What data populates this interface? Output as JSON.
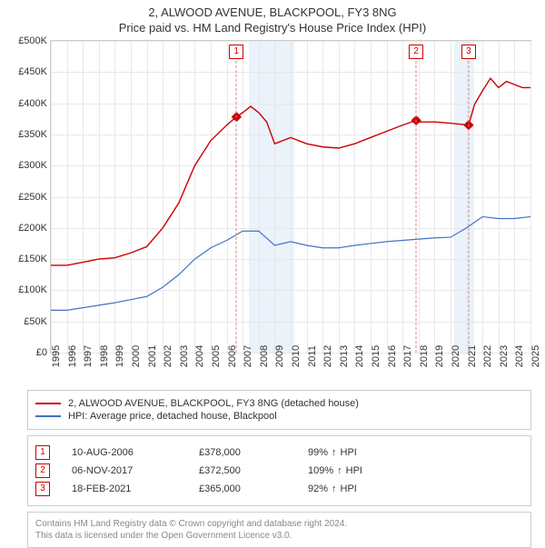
{
  "title": "2, ALWOOD AVENUE, BLACKPOOL, FY3 8NG",
  "subtitle": "Price paid vs. HM Land Registry's House Price Index (HPI)",
  "chart": {
    "type": "line",
    "background_color": "#ffffff",
    "grid_color": "#e8e8e8",
    "axis_color": "#cccccc",
    "font_size_axis": 11,
    "x": {
      "min": 1995,
      "max": 2025,
      "ticks": [
        1995,
        1996,
        1997,
        1998,
        1999,
        2000,
        2001,
        2002,
        2003,
        2004,
        2005,
        2006,
        2007,
        2008,
        2009,
        2010,
        2011,
        2012,
        2013,
        2014,
        2015,
        2016,
        2017,
        2018,
        2019,
        2020,
        2021,
        2022,
        2023,
        2024,
        2025
      ]
    },
    "y": {
      "min": 0,
      "max": 500000,
      "tick_step": 50000,
      "tick_labels": [
        "£0",
        "£50K",
        "£100K",
        "£150K",
        "£200K",
        "£250K",
        "£300K",
        "£350K",
        "£400K",
        "£450K",
        "£500K"
      ]
    },
    "series": [
      {
        "id": "property",
        "label": "2, ALWOOD AVENUE, BLACKPOOL, FY3 8NG (detached house)",
        "color": "#cc0000",
        "line_width": 1.4,
        "data": [
          [
            1995,
            140000
          ],
          [
            1996,
            140000
          ],
          [
            1997,
            145000
          ],
          [
            1998,
            150000
          ],
          [
            1999,
            152000
          ],
          [
            2000,
            160000
          ],
          [
            2001,
            170000
          ],
          [
            2002,
            200000
          ],
          [
            2003,
            240000
          ],
          [
            2004,
            300000
          ],
          [
            2005,
            340000
          ],
          [
            2006,
            365000
          ],
          [
            2006.6,
            378000
          ],
          [
            2007,
            385000
          ],
          [
            2007.5,
            395000
          ],
          [
            2008,
            385000
          ],
          [
            2008.5,
            370000
          ],
          [
            2009,
            335000
          ],
          [
            2010,
            345000
          ],
          [
            2011,
            335000
          ],
          [
            2012,
            330000
          ],
          [
            2013,
            328000
          ],
          [
            2014,
            335000
          ],
          [
            2015,
            345000
          ],
          [
            2016,
            355000
          ],
          [
            2017,
            365000
          ],
          [
            2017.85,
            372500
          ],
          [
            2018,
            370000
          ],
          [
            2019,
            370000
          ],
          [
            2020,
            368000
          ],
          [
            2021.13,
            365000
          ],
          [
            2021.5,
            398000
          ],
          [
            2022,
            420000
          ],
          [
            2022.5,
            440000
          ],
          [
            2023,
            425000
          ],
          [
            2023.5,
            435000
          ],
          [
            2024,
            430000
          ],
          [
            2024.5,
            425000
          ],
          [
            2025,
            425000
          ]
        ]
      },
      {
        "id": "hpi",
        "label": "HPI: Average price, detached house, Blackpool",
        "color": "#4472c4",
        "line_width": 1.2,
        "data": [
          [
            1995,
            68000
          ],
          [
            1996,
            68000
          ],
          [
            1997,
            72000
          ],
          [
            1998,
            76000
          ],
          [
            1999,
            80000
          ],
          [
            2000,
            85000
          ],
          [
            2001,
            90000
          ],
          [
            2002,
            105000
          ],
          [
            2003,
            125000
          ],
          [
            2004,
            150000
          ],
          [
            2005,
            168000
          ],
          [
            2006,
            180000
          ],
          [
            2007,
            195000
          ],
          [
            2008,
            195000
          ],
          [
            2009,
            172000
          ],
          [
            2010,
            178000
          ],
          [
            2011,
            172000
          ],
          [
            2012,
            168000
          ],
          [
            2013,
            168000
          ],
          [
            2014,
            172000
          ],
          [
            2015,
            175000
          ],
          [
            2016,
            178000
          ],
          [
            2017,
            180000
          ],
          [
            2018,
            182000
          ],
          [
            2019,
            184000
          ],
          [
            2020,
            185000
          ],
          [
            2021,
            200000
          ],
          [
            2022,
            218000
          ],
          [
            2023,
            215000
          ],
          [
            2024,
            215000
          ],
          [
            2025,
            218000
          ]
        ]
      }
    ],
    "shaded_regions": [
      {
        "x_from": 2007.4,
        "x_to": 2010.2,
        "color": "#dbe7f5",
        "opacity": 0.55
      },
      {
        "x_from": 2020.2,
        "x_to": 2021.5,
        "color": "#dbe7f5",
        "opacity": 0.55
      }
    ],
    "sale_markers": [
      {
        "index": "1",
        "x": 2006.61,
        "y": 378000
      },
      {
        "index": "2",
        "x": 2017.85,
        "y": 372500
      },
      {
        "index": "3",
        "x": 2021.13,
        "y": 365000
      }
    ],
    "point_marker": {
      "shape": "diamond",
      "size": 8,
      "color": "#cc0000"
    }
  },
  "legend": {
    "items": [
      {
        "color": "#cc0000",
        "label": "2, ALWOOD AVENUE, BLACKPOOL, FY3 8NG (detached house)"
      },
      {
        "color": "#4472c4",
        "label": "HPI: Average price, detached house, Blackpool"
      }
    ]
  },
  "sales": [
    {
      "index": "1",
      "date": "10-AUG-2006",
      "price": "£378,000",
      "hpi_pct": "99%",
      "hpi_dir": "↑",
      "hpi_label": "HPI"
    },
    {
      "index": "2",
      "date": "06-NOV-2017",
      "price": "£372,500",
      "hpi_pct": "109%",
      "hpi_dir": "↑",
      "hpi_label": "HPI"
    },
    {
      "index": "3",
      "date": "18-FEB-2021",
      "price": "£365,000",
      "hpi_pct": "92%",
      "hpi_dir": "↑",
      "hpi_label": "HPI"
    }
  ],
  "license": {
    "line1": "Contains HM Land Registry data © Crown copyright and database right 2024.",
    "line2": "This data is licensed under the Open Government Licence v3.0."
  }
}
